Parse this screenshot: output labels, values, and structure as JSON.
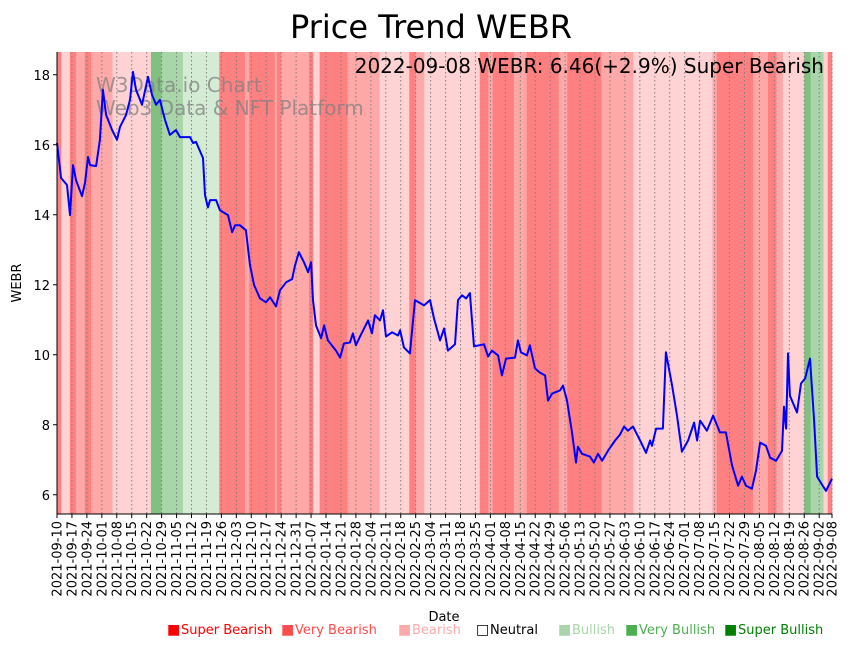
{
  "chart_data": {
    "type": "line",
    "title": "Price Trend WEBR",
    "annotation": "2022-09-08 WEBR: 6.46(+2.9%) Super Bearish",
    "watermark": [
      "W3Data.io Chart",
      "Web3 Data & NFT Platform"
    ],
    "xlabel": "Date",
    "ylabel": "WEBR",
    "x_start_date": "2021-09-10",
    "x_unit": "days since 2021-09-10",
    "xlim": [
      0,
      363
    ],
    "ylim": [
      5.45,
      18.65
    ],
    "yticks": [
      6,
      8,
      10,
      12,
      14,
      16,
      18
    ],
    "xtick_days": [
      0,
      7,
      14,
      21,
      28,
      35,
      42,
      49,
      56,
      63,
      70,
      77,
      84,
      91,
      98,
      105,
      112,
      119,
      126,
      133,
      140,
      147,
      154,
      161,
      168,
      175,
      182,
      189,
      196,
      203,
      210,
      217,
      224,
      231,
      238,
      245,
      252,
      259,
      266,
      273,
      280,
      287,
      294,
      301,
      308,
      315,
      322,
      329,
      336,
      343,
      350,
      357,
      363
    ],
    "xtick_labels": [
      "2021-09-10",
      "2021-09-17",
      "2021-09-24",
      "2021-10-01",
      "2021-10-08",
      "2021-10-15",
      "2021-10-22",
      "2021-10-29",
      "2021-11-05",
      "2021-11-12",
      "2021-11-19",
      "2021-11-26",
      "2021-12-03",
      "2021-12-10",
      "2021-12-17",
      "2021-12-24",
      "2021-12-31",
      "2022-01-07",
      "2022-01-14",
      "2022-01-21",
      "2022-01-28",
      "2022-02-04",
      "2022-02-11",
      "2022-02-18",
      "2022-02-25",
      "2022-03-04",
      "2022-03-11",
      "2022-03-18",
      "2022-03-25",
      "2022-04-01",
      "2022-04-08",
      "2022-04-15",
      "2022-04-22",
      "2022-04-29",
      "2022-05-06",
      "2022-05-13",
      "2022-05-20",
      "2022-05-27",
      "2022-06-03",
      "2022-06-10",
      "2022-06-17",
      "2022-06-24",
      "2022-07-01",
      "2022-07-08",
      "2022-07-15",
      "2022-07-22",
      "2022-07-29",
      "2022-08-05",
      "2022-08-12",
      "2022-08-19",
      "2022-08-26",
      "2022-09-02",
      "2022-09-08"
    ],
    "grid": "vertical dotted",
    "legend_placement": "bottom-right",
    "legend": [
      {
        "key": "super_bearish",
        "label": "Super Bearish",
        "color": "#ff0000",
        "marker": "■"
      },
      {
        "key": "very_bearish",
        "label": "Very Bearish",
        "color": "#ff4d4d",
        "marker": "■"
      },
      {
        "key": "bearish",
        "label": "Bearish",
        "color": "#ffaaaa",
        "marker": "■"
      },
      {
        "key": "neutral",
        "label": "Neutral",
        "color": "#000000",
        "marker": "□"
      },
      {
        "key": "bullish",
        "label": "Bullish",
        "color": "#aad4aa",
        "marker": "■"
      },
      {
        "key": "very_bullish",
        "label": "Very Bullish",
        "color": "#4caf50",
        "marker": "■"
      },
      {
        "key": "super_bullish",
        "label": "Super Bullish",
        "color": "#008000",
        "marker": "■"
      }
    ],
    "band_colors": {
      "super_bearish": "#ff8080",
      "very_bearish": "#ffa8a8",
      "bearish": "#ffd3d3",
      "bullish": "#d4ecd4",
      "very_bullish": "#a8d6a8",
      "super_bullish": "#80c080"
    },
    "bands": [
      [
        0,
        2,
        "super_bearish"
      ],
      [
        2,
        6,
        "bearish"
      ],
      [
        6,
        9,
        "super_bearish"
      ],
      [
        9,
        13,
        "very_bearish"
      ],
      [
        13,
        16,
        "super_bearish"
      ],
      [
        16,
        26,
        "very_bearish"
      ],
      [
        26,
        44,
        "bearish"
      ],
      [
        44,
        49,
        "super_bullish"
      ],
      [
        49,
        59,
        "very_bullish"
      ],
      [
        59,
        76,
        "bullish"
      ],
      [
        76,
        88,
        "super_bearish"
      ],
      [
        88,
        90,
        "very_bearish"
      ],
      [
        90,
        102,
        "super_bearish"
      ],
      [
        102,
        103,
        "very_bearish"
      ],
      [
        103,
        105,
        "super_bearish"
      ],
      [
        105,
        118,
        "very_bearish"
      ],
      [
        118,
        120,
        "super_bearish"
      ],
      [
        120,
        123,
        "bearish"
      ],
      [
        123,
        136,
        "super_bearish"
      ],
      [
        136,
        151,
        "very_bearish"
      ],
      [
        151,
        165,
        "bearish"
      ],
      [
        165,
        168,
        "super_bearish"
      ],
      [
        168,
        172,
        "very_bearish"
      ],
      [
        172,
        198,
        "bearish"
      ],
      [
        198,
        202,
        "super_bearish"
      ],
      [
        202,
        204,
        "very_bearish"
      ],
      [
        204,
        214,
        "super_bearish"
      ],
      [
        214,
        220,
        "very_bearish"
      ],
      [
        220,
        235,
        "super_bearish"
      ],
      [
        235,
        239,
        "very_bearish"
      ],
      [
        239,
        255,
        "super_bearish"
      ],
      [
        255,
        270,
        "very_bearish"
      ],
      [
        270,
        307,
        "bearish"
      ],
      [
        307,
        309,
        "very_bearish"
      ],
      [
        309,
        326,
        "super_bearish"
      ],
      [
        326,
        333,
        "very_bearish"
      ],
      [
        333,
        337,
        "super_bearish"
      ],
      [
        337,
        340,
        "very_bearish"
      ],
      [
        340,
        350,
        "bearish"
      ],
      [
        350,
        353,
        "super_bullish"
      ],
      [
        353,
        359,
        "very_bullish"
      ],
      [
        359,
        361,
        "bearish"
      ],
      [
        361,
        363,
        "super_bearish"
      ]
    ],
    "series": [
      {
        "name": "WEBR",
        "color": "#0000ff",
        "points": [
          [
            0,
            16.05
          ],
          [
            1.9,
            15.05
          ],
          [
            4.7,
            14.85
          ],
          [
            6.1,
            13.99
          ],
          [
            7.5,
            15.42
          ],
          [
            8.9,
            14.99
          ],
          [
            11.7,
            14.53
          ],
          [
            13.1,
            14.91
          ],
          [
            14.5,
            15.65
          ],
          [
            15.5,
            15.42
          ],
          [
            18.3,
            15.39
          ],
          [
            20.1,
            16.14
          ],
          [
            21.5,
            17.57
          ],
          [
            23,
            16.85
          ],
          [
            25.8,
            16.42
          ],
          [
            28.1,
            16.14
          ],
          [
            29.5,
            16.51
          ],
          [
            32.3,
            16.85
          ],
          [
            34.2,
            17.28
          ],
          [
            35.6,
            18.08
          ],
          [
            37,
            17.57
          ],
          [
            39.8,
            17.14
          ],
          [
            42.6,
            17.94
          ],
          [
            44.5,
            17.43
          ],
          [
            46.4,
            17.14
          ],
          [
            48.2,
            17.28
          ],
          [
            50.6,
            16.71
          ],
          [
            52.9,
            16.28
          ],
          [
            55.7,
            16.42
          ],
          [
            57.6,
            16.22
          ],
          [
            62.3,
            16.22
          ],
          [
            63.7,
            16.05
          ],
          [
            65.1,
            16.08
          ],
          [
            68.4,
            15.62
          ],
          [
            69.3,
            14.56
          ],
          [
            70.7,
            14.21
          ],
          [
            71.7,
            14.42
          ],
          [
            74.5,
            14.42
          ],
          [
            76.3,
            14.13
          ],
          [
            80.1,
            13.99
          ],
          [
            82,
            13.5
          ],
          [
            83.4,
            13.7
          ],
          [
            85.7,
            13.7
          ],
          [
            88.5,
            13.56
          ],
          [
            90.4,
            12.56
          ],
          [
            92.3,
            11.99
          ],
          [
            95.1,
            11.61
          ],
          [
            97.9,
            11.5
          ],
          [
            99.8,
            11.64
          ],
          [
            102.6,
            11.38
          ],
          [
            104.4,
            11.84
          ],
          [
            107.3,
            12.07
          ],
          [
            110.1,
            12.16
          ],
          [
            111.5,
            12.56
          ],
          [
            113.3,
            12.93
          ],
          [
            115.7,
            12.64
          ],
          [
            117.6,
            12.36
          ],
          [
            119,
            12.64
          ],
          [
            119.9,
            11.56
          ],
          [
            121.3,
            10.84
          ],
          [
            123.7,
            10.47
          ],
          [
            125.1,
            10.84
          ],
          [
            126.9,
            10.41
          ],
          [
            130.7,
            10.12
          ],
          [
            132.6,
            9.92
          ],
          [
            134.4,
            10.32
          ],
          [
            137.2,
            10.35
          ],
          [
            138.6,
            10.61
          ],
          [
            140,
            10.27
          ],
          [
            141.9,
            10.52
          ],
          [
            145.7,
            10.98
          ],
          [
            147.5,
            10.61
          ],
          [
            148.9,
            11.13
          ],
          [
            151.3,
            10.98
          ],
          [
            152.7,
            11.27
          ],
          [
            154.1,
            10.52
          ],
          [
            156.9,
            10.64
          ],
          [
            159.7,
            10.55
          ],
          [
            160.7,
            10.7
          ],
          [
            162.5,
            10.21
          ],
          [
            165.3,
            10.04
          ],
          [
            167.7,
            11.56
          ],
          [
            171.9,
            11.41
          ],
          [
            174.7,
            11.56
          ],
          [
            176.6,
            11.04
          ],
          [
            179.4,
            10.41
          ],
          [
            181.3,
            10.75
          ],
          [
            183.1,
            10.12
          ],
          [
            186.4,
            10.3
          ],
          [
            187.8,
            11.56
          ],
          [
            189.7,
            11.7
          ],
          [
            191.6,
            11.61
          ],
          [
            193.4,
            11.76
          ],
          [
            195.3,
            10.24
          ],
          [
            200,
            10.3
          ],
          [
            201.9,
            9.95
          ],
          [
            203.7,
            10.12
          ],
          [
            206.6,
            9.98
          ],
          [
            208.4,
            9.41
          ],
          [
            210.3,
            9.89
          ],
          [
            214.5,
            9.92
          ],
          [
            215.9,
            10.41
          ],
          [
            217.3,
            10.07
          ],
          [
            220.1,
            9.98
          ],
          [
            221.5,
            10.27
          ],
          [
            223.9,
            9.61
          ],
          [
            226.2,
            9.49
          ],
          [
            228.6,
            9.41
          ],
          [
            230,
            8.69
          ],
          [
            231.9,
            8.89
          ],
          [
            235.6,
            8.98
          ],
          [
            237,
            9.12
          ],
          [
            238.9,
            8.69
          ],
          [
            241.2,
            7.78
          ],
          [
            243.1,
            6.92
          ],
          [
            244,
            7.37
          ],
          [
            245.9,
            7.17
          ],
          [
            249.6,
            7.09
          ],
          [
            251.5,
            6.92
          ],
          [
            253.4,
            7.17
          ],
          [
            255.3,
            6.97
          ],
          [
            258.1,
            7.26
          ],
          [
            261.4,
            7.55
          ],
          [
            263.7,
            7.72
          ],
          [
            265.6,
            7.95
          ],
          [
            267.4,
            7.83
          ],
          [
            269.8,
            7.95
          ],
          [
            271.2,
            7.78
          ],
          [
            273.1,
            7.55
          ],
          [
            275.9,
            7.2
          ],
          [
            277.8,
            7.55
          ],
          [
            278.7,
            7.4
          ],
          [
            280.6,
            7.89
          ],
          [
            283.8,
            7.89
          ],
          [
            285.2,
            10.07
          ],
          [
            288.1,
            9.12
          ],
          [
            290.4,
            8.26
          ],
          [
            292.7,
            7.23
          ],
          [
            295.6,
            7.55
          ],
          [
            298.4,
            8.06
          ],
          [
            299.8,
            7.55
          ],
          [
            301.2,
            8.12
          ],
          [
            304.4,
            7.83
          ],
          [
            307.3,
            8.26
          ],
          [
            310.5,
            7.78
          ],
          [
            313.3,
            7.78
          ],
          [
            316.2,
            6.83
          ],
          [
            319,
            6.26
          ],
          [
            320.8,
            6.52
          ],
          [
            322.7,
            6.26
          ],
          [
            325.5,
            6.17
          ],
          [
            327.4,
            6.69
          ],
          [
            329.3,
            7.49
          ],
          [
            332.1,
            7.4
          ],
          [
            334,
            7.06
          ],
          [
            336.8,
            6.97
          ],
          [
            339.6,
            7.26
          ],
          [
            340.5,
            8.52
          ],
          [
            341.5,
            7.89
          ],
          [
            342.4,
            10.04
          ],
          [
            343.3,
            8.83
          ],
          [
            346.6,
            8.35
          ],
          [
            348.5,
            9.18
          ],
          [
            350.4,
            9.32
          ],
          [
            352.7,
            9.89
          ],
          [
            354.6,
            8.12
          ],
          [
            356,
            6.52
          ],
          [
            358.3,
            6.29
          ],
          [
            360.2,
            6.11
          ],
          [
            363,
            6.46
          ]
        ]
      }
    ]
  }
}
